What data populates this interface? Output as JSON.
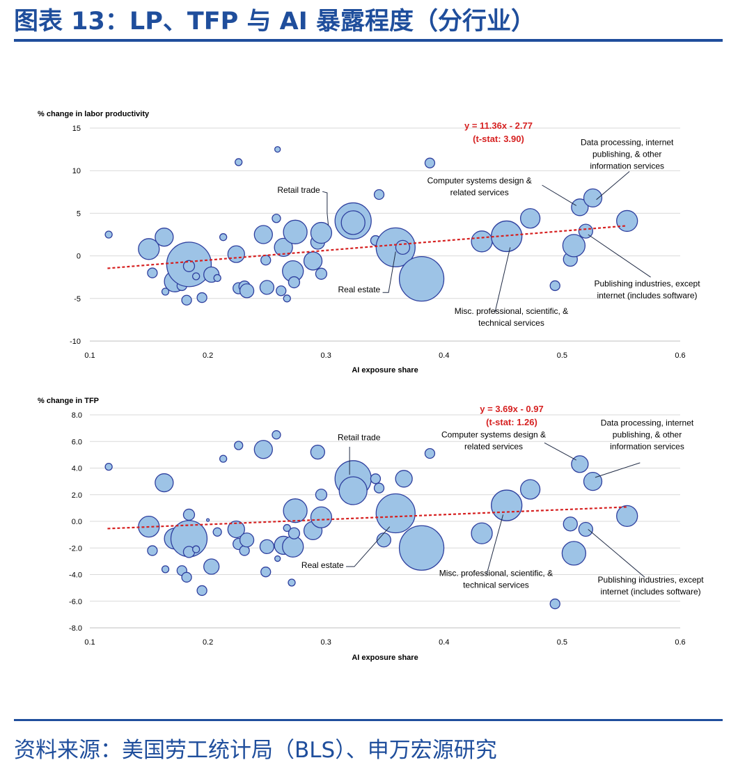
{
  "title": "图表 13：LP、TFP 与 AI 暴露程度（分行业）",
  "source": "资料来源：美国劳工统计局（BLS）、申万宏源研究",
  "colors": {
    "brand": "#1f4e9c",
    "bubble_fill": "#9dc3e6",
    "bubble_stroke": "#2e3f9e",
    "trend": "#d62020",
    "annotation": "#d62020"
  },
  "chart_data": [
    {
      "type": "scatter",
      "ylabel": "% change in labor productivity",
      "xlabel": "AI exposure share",
      "xlim": [
        0.1,
        0.6
      ],
      "ylim": [
        -10,
        15
      ],
      "xticks": [
        "0.1",
        "0.2",
        "0.3",
        "0.4",
        "0.5",
        "0.6"
      ],
      "yticks": [
        "15",
        "10",
        "5",
        "0",
        "-5",
        "-10"
      ],
      "ytick_values": [
        15,
        10,
        5,
        0,
        -5,
        -10
      ],
      "equation": "y = 11.36x - 2.77",
      "tstat": "(t-stat: 3.90)",
      "trend": {
        "slope": 11.36,
        "intercept": -2.77,
        "x_range": [
          0.115,
          0.555
        ]
      },
      "points": [
        {
          "x": 0.116,
          "y": 2.5,
          "r": 5
        },
        {
          "x": 0.15,
          "y": 0.8,
          "r": 15
        },
        {
          "x": 0.153,
          "y": -2.0,
          "r": 7
        },
        {
          "x": 0.163,
          "y": 2.2,
          "r": 13
        },
        {
          "x": 0.164,
          "y": -4.2,
          "r": 5
        },
        {
          "x": 0.172,
          "y": -3.0,
          "r": 15
        },
        {
          "x": 0.178,
          "y": -3.5,
          "r": 7
        },
        {
          "x": 0.182,
          "y": -5.2,
          "r": 7
        },
        {
          "x": 0.184,
          "y": -1.0,
          "r": 32
        },
        {
          "x": 0.184,
          "y": -1.2,
          "r": 8
        },
        {
          "x": 0.19,
          "y": -2.4,
          "r": 5
        },
        {
          "x": 0.195,
          "y": -4.9,
          "r": 7
        },
        {
          "x": 0.203,
          "y": -2.2,
          "r": 11
        },
        {
          "x": 0.208,
          "y": -2.6,
          "r": 5
        },
        {
          "x": 0.213,
          "y": 2.2,
          "r": 5
        },
        {
          "x": 0.224,
          "y": 0.2,
          "r": 12
        },
        {
          "x": 0.226,
          "y": 11.0,
          "r": 5
        },
        {
          "x": 0.226,
          "y": -3.8,
          "r": 8
        },
        {
          "x": 0.231,
          "y": -3.6,
          "r": 8
        },
        {
          "x": 0.233,
          "y": -4.1,
          "r": 10
        },
        {
          "x": 0.247,
          "y": 2.5,
          "r": 13
        },
        {
          "x": 0.249,
          "y": -0.5,
          "r": 7
        },
        {
          "x": 0.25,
          "y": -3.7,
          "r": 10
        },
        {
          "x": 0.258,
          "y": 4.4,
          "r": 6
        },
        {
          "x": 0.259,
          "y": 12.5,
          "r": 4
        },
        {
          "x": 0.262,
          "y": -4.1,
          "r": 7
        },
        {
          "x": 0.264,
          "y": 1.0,
          "r": 13
        },
        {
          "x": 0.267,
          "y": -5.0,
          "r": 5
        },
        {
          "x": 0.274,
          "y": 2.8,
          "r": 17
        },
        {
          "x": 0.272,
          "y": -1.8,
          "r": 15
        },
        {
          "x": 0.273,
          "y": -3.1,
          "r": 8
        },
        {
          "x": 0.289,
          "y": -0.6,
          "r": 13
        },
        {
          "x": 0.293,
          "y": 1.6,
          "r": 10
        },
        {
          "x": 0.296,
          "y": 2.7,
          "r": 15
        },
        {
          "x": 0.296,
          "y": -2.1,
          "r": 8
        },
        {
          "x": 0.323,
          "y": 4.1,
          "r": 26
        },
        {
          "x": 0.323,
          "y": 3.9,
          "r": 17
        },
        {
          "x": 0.342,
          "y": 1.8,
          "r": 7
        },
        {
          "x": 0.345,
          "y": 7.2,
          "r": 7
        },
        {
          "x": 0.359,
          "y": 1.0,
          "r": 28
        },
        {
          "x": 0.365,
          "y": 1.0,
          "r": 10
        },
        {
          "x": 0.381,
          "y": -2.7,
          "r": 32
        },
        {
          "x": 0.388,
          "y": 10.9,
          "r": 7
        },
        {
          "x": 0.432,
          "y": 1.7,
          "r": 15
        },
        {
          "x": 0.453,
          "y": 2.3,
          "r": 22
        },
        {
          "x": 0.473,
          "y": 4.4,
          "r": 14
        },
        {
          "x": 0.494,
          "y": -3.5,
          "r": 7
        },
        {
          "x": 0.507,
          "y": -0.4,
          "r": 10
        },
        {
          "x": 0.51,
          "y": 1.2,
          "r": 16
        },
        {
          "x": 0.515,
          "y": 5.7,
          "r": 12
        },
        {
          "x": 0.52,
          "y": 2.9,
          "r": 10
        },
        {
          "x": 0.526,
          "y": 6.8,
          "r": 13
        },
        {
          "x": 0.555,
          "y": 4.1,
          "r": 15
        }
      ],
      "annotations": [
        {
          "text": [
            "Retail trade"
          ],
          "anchor": "end",
          "tx": 0.295,
          "ty": 7.4,
          "leader": [
            [
              0.297,
              7.55
            ],
            [
              0.301,
              7.4
            ],
            [
              0.301,
              5.0
            ],
            [
              0.302,
              3.6
            ]
          ]
        },
        {
          "text": [
            "Real estate"
          ],
          "anchor": "end",
          "tx": 0.346,
          "ty": -4.3,
          "leader": [
            [
              0.348,
              -4.3
            ],
            [
              0.353,
              -4.3
            ],
            [
              0.359,
              0.5
            ]
          ]
        },
        {
          "text": [
            "Computer systems design &",
            "related services"
          ],
          "anchor": "middle",
          "tx": 0.43,
          "ty": 8.5,
          "leader": [
            [
              0.483,
              8.3
            ],
            [
              0.512,
              5.9
            ]
          ]
        },
        {
          "text": [
            "Data processing, internet",
            "publishing, & other",
            "information services"
          ],
          "anchor": "middle",
          "tx": 0.555,
          "ty": 13.0,
          "leader": [
            [
              0.557,
              9.9
            ],
            [
              0.529,
              6.6
            ]
          ]
        },
        {
          "text": [
            "Misc. professional, scientific, &",
            "technical services"
          ],
          "anchor": "middle",
          "tx": 0.457,
          "ty": -6.8,
          "leader": [
            [
              0.443,
              -6.7
            ],
            [
              0.456,
              1.0
            ]
          ]
        },
        {
          "text": [
            "Publishing industries, except",
            "internet (includes software)"
          ],
          "anchor": "middle",
          "tx": 0.572,
          "ty": -3.6,
          "leader": [
            [
              0.575,
              -2.5
            ],
            [
              0.522,
              2.5
            ]
          ]
        }
      ]
    },
    {
      "type": "scatter",
      "ylabel": "% change in TFP",
      "xlabel": "AI exposure share",
      "xlim": [
        0.1,
        0.6
      ],
      "ylim": [
        -8,
        8
      ],
      "xticks": [
        "0.1",
        "0.2",
        "0.3",
        "0.4",
        "0.5",
        "0.6"
      ],
      "yticks": [
        "8.0",
        "6.0",
        "4.0",
        "2.0",
        "0.0",
        "-2.0",
        "-4.0",
        "-6.0",
        "-8.0"
      ],
      "ytick_values": [
        8,
        6,
        4,
        2,
        0,
        -2,
        -4,
        -6,
        -8
      ],
      "equation": "y = 3.69x - 0.97",
      "tstat": "(t-stat: 1.26)",
      "trend": {
        "slope": 3.69,
        "intercept": -0.97,
        "x_range": [
          0.115,
          0.555
        ]
      },
      "points": [
        {
          "x": 0.116,
          "y": 4.1,
          "r": 5
        },
        {
          "x": 0.15,
          "y": -0.4,
          "r": 15
        },
        {
          "x": 0.153,
          "y": -2.2,
          "r": 7
        },
        {
          "x": 0.163,
          "y": 2.9,
          "r": 13
        },
        {
          "x": 0.164,
          "y": -3.6,
          "r": 5
        },
        {
          "x": 0.172,
          "y": -1.3,
          "r": 15
        },
        {
          "x": 0.178,
          "y": -3.7,
          "r": 7
        },
        {
          "x": 0.182,
          "y": -4.2,
          "r": 7
        },
        {
          "x": 0.184,
          "y": -1.3,
          "r": 26
        },
        {
          "x": 0.184,
          "y": 0.5,
          "r": 8
        },
        {
          "x": 0.184,
          "y": -2.3,
          "r": 8
        },
        {
          "x": 0.19,
          "y": -2.1,
          "r": 5
        },
        {
          "x": 0.195,
          "y": -5.2,
          "r": 7
        },
        {
          "x": 0.2,
          "y": 0.1,
          "r": 2
        },
        {
          "x": 0.203,
          "y": -3.4,
          "r": 11
        },
        {
          "x": 0.208,
          "y": -0.8,
          "r": 6
        },
        {
          "x": 0.213,
          "y": 4.7,
          "r": 5
        },
        {
          "x": 0.224,
          "y": -0.6,
          "r": 12
        },
        {
          "x": 0.226,
          "y": 5.7,
          "r": 6
        },
        {
          "x": 0.226,
          "y": -1.7,
          "r": 8
        },
        {
          "x": 0.231,
          "y": -2.2,
          "r": 7
        },
        {
          "x": 0.233,
          "y": -1.4,
          "r": 10
        },
        {
          "x": 0.247,
          "y": 5.4,
          "r": 13
        },
        {
          "x": 0.249,
          "y": -3.8,
          "r": 7
        },
        {
          "x": 0.25,
          "y": -1.9,
          "r": 10
        },
        {
          "x": 0.258,
          "y": 6.5,
          "r": 6
        },
        {
          "x": 0.259,
          "y": -2.8,
          "r": 4
        },
        {
          "x": 0.262,
          "y": -1.6,
          "r": 7
        },
        {
          "x": 0.264,
          "y": -1.8,
          "r": 13
        },
        {
          "x": 0.267,
          "y": -0.5,
          "r": 5
        },
        {
          "x": 0.271,
          "y": -4.6,
          "r": 5
        },
        {
          "x": 0.274,
          "y": 0.8,
          "r": 17
        },
        {
          "x": 0.272,
          "y": -1.9,
          "r": 15
        },
        {
          "x": 0.273,
          "y": -0.9,
          "r": 8
        },
        {
          "x": 0.289,
          "y": -0.7,
          "r": 13
        },
        {
          "x": 0.293,
          "y": 5.2,
          "r": 10
        },
        {
          "x": 0.296,
          "y": 0.3,
          "r": 15
        },
        {
          "x": 0.296,
          "y": 2.0,
          "r": 8
        },
        {
          "x": 0.323,
          "y": 3.2,
          "r": 26
        },
        {
          "x": 0.323,
          "y": 2.3,
          "r": 20
        },
        {
          "x": 0.342,
          "y": 3.2,
          "r": 7
        },
        {
          "x": 0.345,
          "y": 2.5,
          "r": 7
        },
        {
          "x": 0.349,
          "y": -1.4,
          "r": 10
        },
        {
          "x": 0.359,
          "y": 0.6,
          "r": 28
        },
        {
          "x": 0.366,
          "y": 3.2,
          "r": 12
        },
        {
          "x": 0.381,
          "y": -2.0,
          "r": 32
        },
        {
          "x": 0.388,
          "y": 5.1,
          "r": 7
        },
        {
          "x": 0.432,
          "y": -0.9,
          "r": 15
        },
        {
          "x": 0.453,
          "y": 1.2,
          "r": 22
        },
        {
          "x": 0.473,
          "y": 2.4,
          "r": 14
        },
        {
          "x": 0.494,
          "y": -6.2,
          "r": 7
        },
        {
          "x": 0.507,
          "y": -0.2,
          "r": 10
        },
        {
          "x": 0.51,
          "y": -2.4,
          "r": 17
        },
        {
          "x": 0.515,
          "y": 4.3,
          "r": 12
        },
        {
          "x": 0.52,
          "y": -0.6,
          "r": 10
        },
        {
          "x": 0.526,
          "y": 3.0,
          "r": 13
        },
        {
          "x": 0.555,
          "y": 0.4,
          "r": 15
        }
      ],
      "annotations": [
        {
          "text": [
            "Retail trade"
          ],
          "anchor": "middle",
          "tx": 0.328,
          "ty": 6.1,
          "leader": [
            [
              0.32,
              5.6
            ],
            [
              0.32,
              3.5
            ]
          ]
        },
        {
          "text": [
            "Real estate"
          ],
          "anchor": "end",
          "tx": 0.315,
          "ty": -3.5,
          "leader": [
            [
              0.317,
              -3.4
            ],
            [
              0.324,
              -3.4
            ],
            [
              0.354,
              -0.4
            ]
          ]
        },
        {
          "text": [
            "Computer systems design &",
            "related services"
          ],
          "anchor": "middle",
          "tx": 0.442,
          "ty": 6.3,
          "leader": [
            [
              0.485,
              5.9
            ],
            [
              0.512,
              4.6
            ]
          ]
        },
        {
          "text": [
            "Data processing, internet",
            "publishing, & other",
            "information services"
          ],
          "anchor": "middle",
          "tx": 0.572,
          "ty": 7.2,
          "leader": [
            [
              0.566,
              4.4
            ],
            [
              0.528,
              3.3
            ]
          ]
        },
        {
          "text": [
            "Misc. professional, scientific, &",
            "technical services"
          ],
          "anchor": "middle",
          "tx": 0.444,
          "ty": -4.1,
          "leader": [
            [
              0.436,
              -4.0
            ],
            [
              0.45,
              0.5
            ]
          ]
        },
        {
          "text": [
            "Publishing industries, except",
            "internet (includes software)"
          ],
          "anchor": "middle",
          "tx": 0.575,
          "ty": -4.6,
          "leader": [
            [
              0.57,
              -4.2
            ],
            [
              0.522,
              -0.6
            ]
          ]
        }
      ]
    }
  ]
}
